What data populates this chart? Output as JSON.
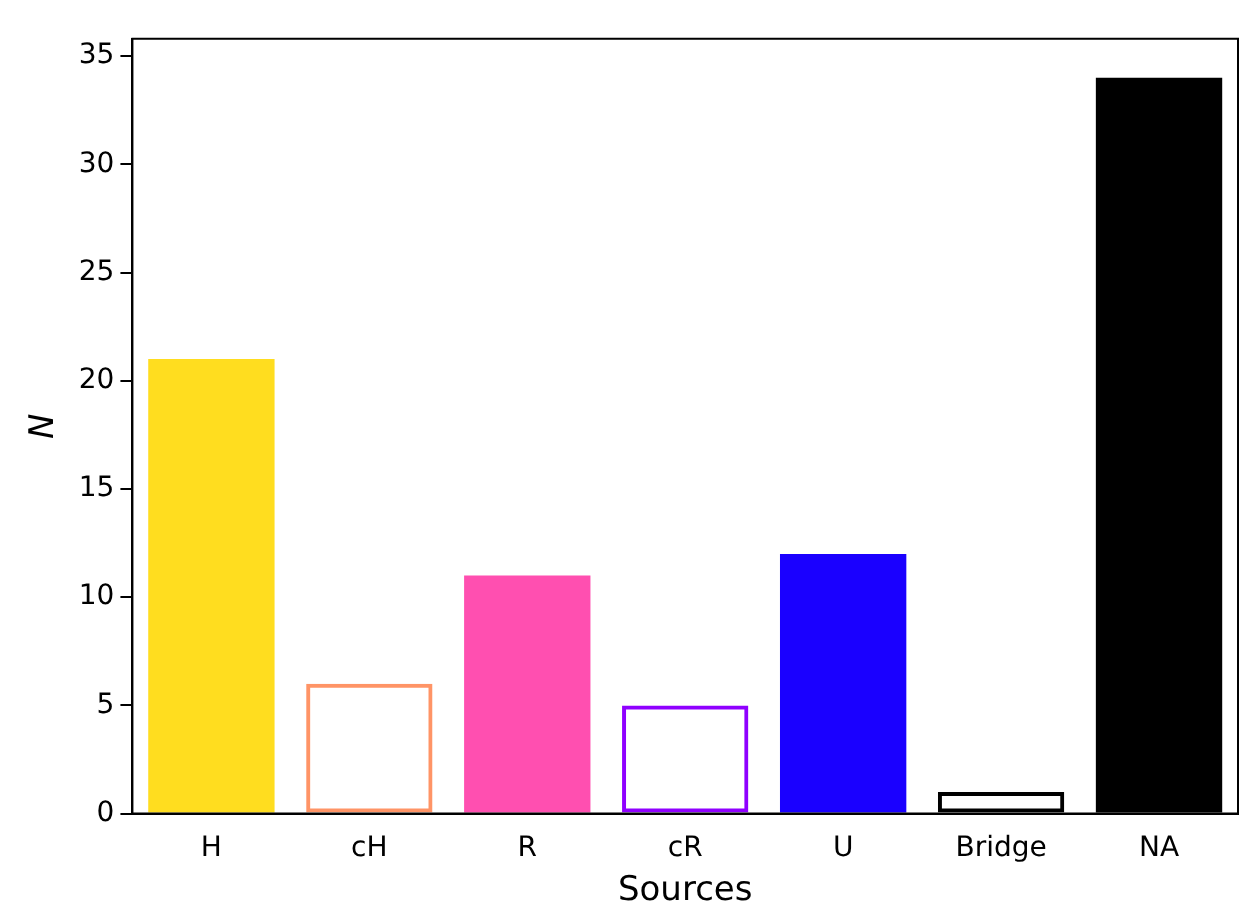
{
  "chart_data": {
    "type": "bar",
    "xlabel": "Sources",
    "ylabel": "N",
    "categories": [
      "H",
      "cH",
      "R",
      "cR",
      "U",
      "Bridge",
      "NA"
    ],
    "series": [
      {
        "values": [
          21,
          null,
          11,
          null,
          12,
          null,
          34
        ],
        "colors": [
          "#ffdd1f",
          null,
          "#ff4fb0",
          null,
          "#1a00ff",
          null,
          "#000000"
        ]
      },
      {
        "values": [
          null,
          6,
          null,
          5,
          null,
          1,
          null
        ],
        "colors": [
          null,
          "#ff9466",
          null,
          "#8f00ff",
          null,
          "#000000",
          null
        ]
      }
    ],
    "ylim": [
      0,
      35.8
    ],
    "yticks": [
      0,
      5,
      10,
      15,
      20,
      25,
      30,
      35
    ],
    "grid": false,
    "legend": false
  }
}
